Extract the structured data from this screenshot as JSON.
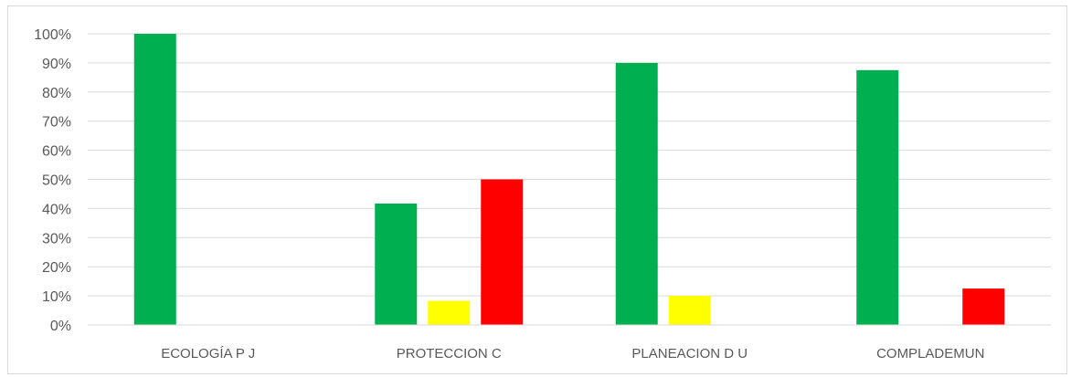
{
  "chart_data": {
    "type": "bar",
    "categories": [
      "ECOLOGÍA P J",
      "PROTECCION C",
      "PLANEACION D U",
      "COMPLADEMUN"
    ],
    "series": [
      {
        "values": [
          100,
          41.7,
          90,
          87.5
        ]
      },
      {
        "values": [
          0,
          8.3,
          10,
          0
        ]
      },
      {
        "values": [
          0,
          50,
          0,
          12.5
        ]
      }
    ],
    "series_colors": [
      "#00b050",
      "#ffff00",
      "#ff0000"
    ],
    "ylim": [
      0,
      100
    ],
    "yticks": [
      "0%",
      "10%",
      "20%",
      "30%",
      "40%",
      "50%",
      "60%",
      "70%",
      "80%",
      "90%",
      "100%"
    ],
    "grid": true,
    "legend": "none",
    "title": "",
    "xlabel": "",
    "ylabel": ""
  }
}
